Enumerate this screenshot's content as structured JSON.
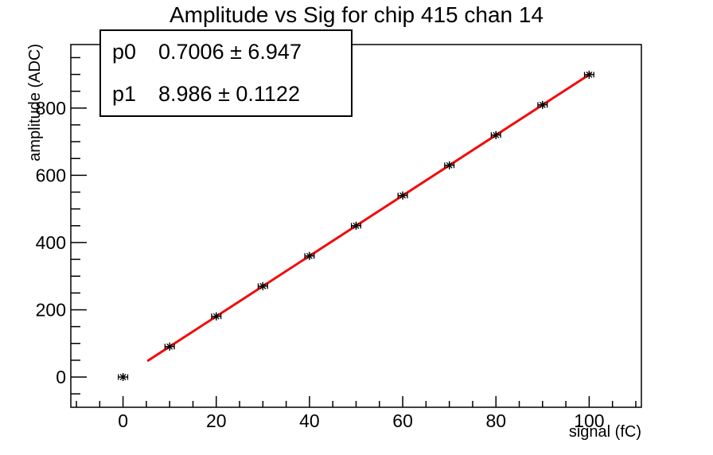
{
  "title": "Amplitude vs Sig for chip 415 chan 14",
  "stats_box": {
    "rows": [
      {
        "param": "p0",
        "value": "0.7006 ± 6.947"
      },
      {
        "param": "p1",
        "value": "8.986 ± 0.1122"
      }
    ]
  },
  "axes": {
    "x_title": "signal (fC)",
    "y_title": "amplitude (ADC)"
  },
  "chart_data": {
    "type": "scatter",
    "title": "Amplitude vs Sig for chip 415 chan 14",
    "xlabel": "signal (fC)",
    "ylabel": "amplitude (ADC)",
    "x": [
      0,
      10,
      20,
      30,
      40,
      50,
      60,
      70,
      80,
      90,
      100
    ],
    "y": [
      0,
      90.6,
      180.5,
      270.3,
      360.1,
      450.0,
      539.9,
      629.7,
      719.6,
      809.4,
      899.3
    ],
    "x_error": 1,
    "y_error": 8,
    "marker_style": "asterisk",
    "marker_color": "#000000",
    "xlim": [
      -11.2,
      111.2
    ],
    "ylim": [
      -89.9,
      988.9
    ],
    "x_major_ticks": [
      0,
      20,
      40,
      60,
      80,
      100
    ],
    "x_minor_tick_step": 5,
    "y_major_ticks": [
      0,
      200,
      400,
      600,
      800
    ],
    "y_minor_tick_step": 50,
    "grid": false,
    "legend_position": "top-left-stats-box",
    "fit": {
      "type": "linear",
      "p0": 0.7006,
      "p0_error": 6.947,
      "p1": 8.986,
      "p1_error": 0.1122,
      "x_start": 5.4,
      "x_end": 100.3,
      "color": "#f20c0c",
      "line_width": 3
    }
  }
}
